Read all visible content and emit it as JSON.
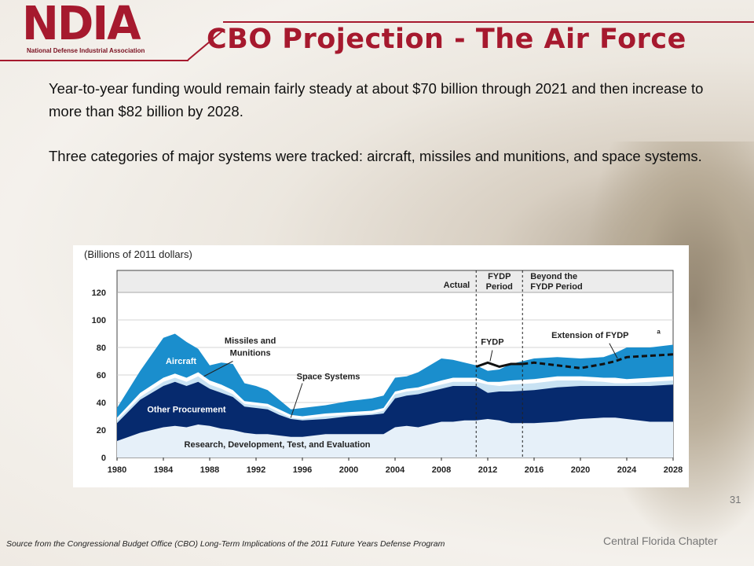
{
  "logo": {
    "text": "NDIA",
    "subtitle": "National Defense Industrial Association"
  },
  "header": {
    "title": "CBO Projection  - The Air Force"
  },
  "body": {
    "paragraph1": "Year-to-year funding would remain fairly steady at about $70 billion through 2021 and then increase to more than $82 billion by 2028.",
    "paragraph2": "Three categories of major systems were tracked: aircraft, missiles and munitions, and space systems."
  },
  "footer": {
    "source": "Source from the Congressional Budget Office (CBO) Long-Term Implications of the 2011 Future Years Defense Program",
    "chapter": "Central Florida Chapter",
    "page": "31"
  },
  "colors": {
    "brand_red": "#a6192e",
    "rdte": "#e6f0f9",
    "other_procurement": "#062a6e",
    "space_systems": "#c8e2f3",
    "missiles_munitions": "#ffffff",
    "aircraft": "#1a8ecd",
    "header_band": "#ececec"
  },
  "chart_data": {
    "type": "area",
    "units_label": "(Billions of 2011 dollars)",
    "x": [
      1980,
      1982,
      1984,
      1985,
      1986,
      1987,
      1988,
      1989,
      1990,
      1991,
      1992,
      1993,
      1994,
      1995,
      1996,
      1998,
      2000,
      2002,
      2003,
      2004,
      2005,
      2006,
      2008,
      2009,
      2010,
      2011,
      2012,
      2013,
      2014,
      2016,
      2018,
      2020,
      2022,
      2023,
      2024,
      2026,
      2028
    ],
    "xlim": [
      1980,
      2028
    ],
    "xticks": [
      "1980",
      "1984",
      "1988",
      "1992",
      "1996",
      "2000",
      "2004",
      "2008",
      "2012",
      "2016",
      "2020",
      "2024",
      "2028"
    ],
    "ylim": [
      0,
      120
    ],
    "yticks": [
      "0",
      "20",
      "40",
      "60",
      "80",
      "100",
      "120"
    ],
    "stacked_cumulative_tops": [
      {
        "name": "Research, Development, Test, and Evaluation",
        "values": [
          12,
          18,
          22,
          23,
          22,
          24,
          23,
          21,
          20,
          18,
          17,
          17,
          16,
          15,
          15,
          17,
          17,
          17,
          17,
          22,
          23,
          22,
          26,
          26,
          27,
          27,
          28,
          27,
          25,
          25,
          26,
          28,
          29,
          29,
          28,
          26,
          26
        ]
      },
      {
        "name": "Other Procurement",
        "values": [
          25,
          42,
          52,
          55,
          52,
          55,
          50,
          47,
          44,
          37,
          36,
          35,
          31,
          28,
          27,
          28,
          30,
          31,
          32,
          43,
          45,
          46,
          50,
          52,
          52,
          52,
          47,
          48,
          48,
          49,
          51,
          52,
          52,
          52,
          52,
          52,
          53
        ]
      },
      {
        "name": "Space Systems",
        "values": [
          27,
          44,
          55,
          58,
          55,
          59,
          53,
          50,
          46,
          39,
          38,
          37,
          33,
          29,
          28,
          30,
          31,
          32,
          34,
          46,
          48,
          49,
          53,
          55,
          55,
          55,
          53,
          52,
          53,
          54,
          56,
          56,
          55,
          54,
          54,
          55,
          56
        ]
      },
      {
        "name": "Missiles and Munitions",
        "values": [
          29,
          47,
          58,
          61,
          58,
          62,
          56,
          53,
          49,
          41,
          40,
          39,
          35,
          31,
          30,
          32,
          33,
          34,
          36,
          48,
          50,
          51,
          56,
          58,
          58,
          58,
          55,
          55,
          56,
          57,
          59,
          59,
          58,
          58,
          57,
          58,
          59
        ]
      },
      {
        "name": "Aircraft",
        "values": [
          36,
          63,
          87,
          90,
          84,
          79,
          67,
          69,
          68,
          54,
          52,
          49,
          42,
          35,
          36,
          38,
          41,
          43,
          45,
          58,
          59,
          62,
          72,
          71,
          69,
          67,
          63,
          64,
          68,
          72,
          73,
          72,
          73,
          76,
          80,
          80,
          82
        ]
      }
    ],
    "fydp_line": {
      "name": "FYDP",
      "x": [
        2011,
        2012,
        2013,
        2014,
        2015
      ],
      "y": [
        66,
        69,
        66,
        68,
        68
      ]
    },
    "extension_line": {
      "name": "Extension of FYDP",
      "superscript": "a",
      "x": [
        2015,
        2016,
        2018,
        2020,
        2022,
        2023,
        2024,
        2026,
        2028
      ],
      "y": [
        68,
        69,
        67,
        65,
        68,
        70,
        73,
        74,
        75
      ]
    },
    "period_dividers": [
      2011,
      2015
    ],
    "period_labels": [
      "Actual",
      "FYDP\nPeriod",
      "Beyond the\nFYDP Period"
    ],
    "annotations": {
      "aircraft": "Aircraft",
      "missiles": "Missiles and\nMunitions",
      "space": "Space Systems",
      "other": "Other Procurement",
      "rdte": "Research, Development, Test, and Evaluation",
      "fydp": "FYDP",
      "extension": "Extension of FYDP"
    }
  }
}
